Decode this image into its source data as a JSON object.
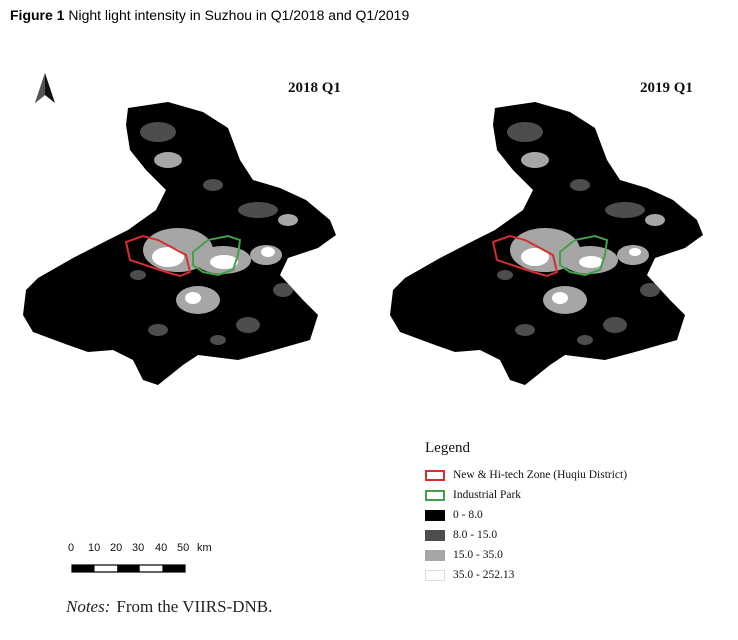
{
  "figure": {
    "label": "Figure 1",
    "caption": "Night light intensity in Suzhou in Q1/2018 and Q1/2019"
  },
  "maps": [
    {
      "title": "2018 Q1"
    },
    {
      "title": "2019 Q1"
    }
  ],
  "scale": {
    "ticks": [
      "0",
      "10",
      "20",
      "30",
      "40",
      "50"
    ],
    "unit": "km"
  },
  "legend": {
    "title": "Legend",
    "items": [
      {
        "label": "New & Hi-tech Zone (Huqiu District)",
        "kind": "outline",
        "color": "#d32f2f"
      },
      {
        "label": "Industrial Park",
        "kind": "outline",
        "color": "#43a047"
      },
      {
        "label": "0 - 8.0",
        "kind": "fill",
        "color": "#000000"
      },
      {
        "label": "8.0 - 15.0",
        "kind": "fill",
        "color": "#4d4d4d"
      },
      {
        "label": "15.0 - 35.0",
        "kind": "fill",
        "color": "#a6a6a6"
      },
      {
        "label": "35.0 - 252.13",
        "kind": "fill",
        "color": "#ffffff"
      }
    ]
  },
  "notes": {
    "label": "Notes:",
    "text": "From the VIIRS-DNB."
  }
}
